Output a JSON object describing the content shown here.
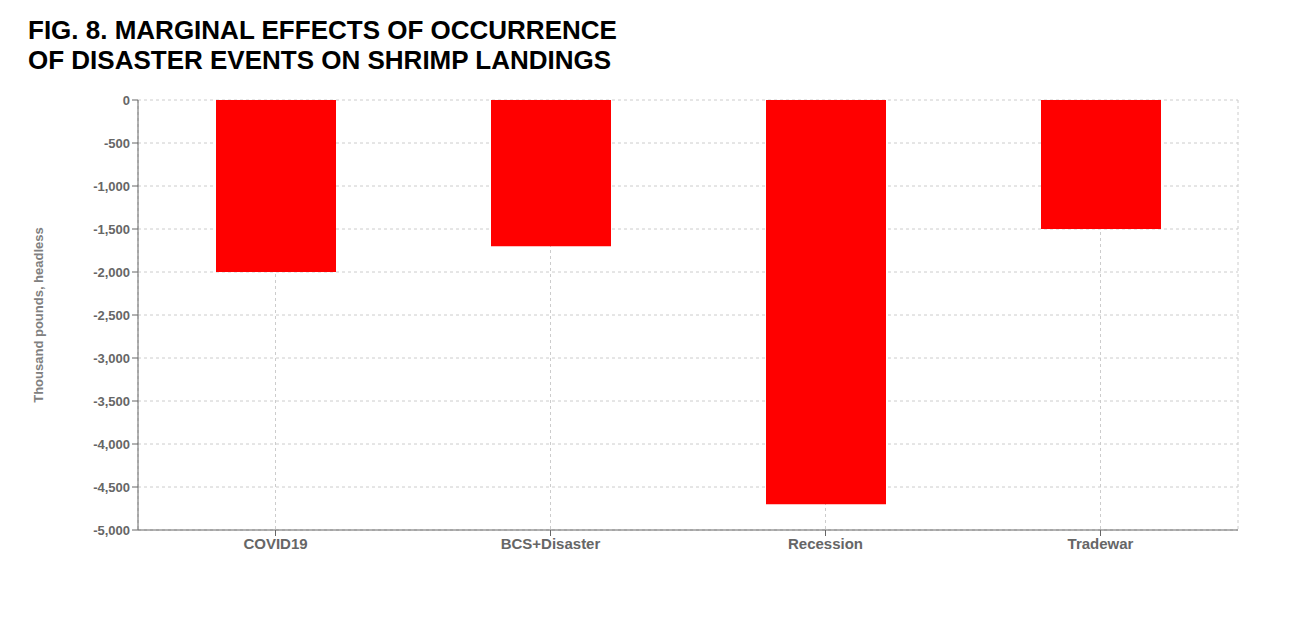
{
  "chart_data": {
    "type": "bar",
    "title": "FIG. 8. MARGINAL EFFECTS OF OCCURRENCE\nOF DISASTER EVENTS ON SHRIMP LANDINGS",
    "ylabel": "Thousand pounds, headless",
    "categories": [
      "COVID19",
      "BCS+Disaster",
      "Recession",
      "Tradewar"
    ],
    "values": [
      -2000,
      -1700,
      -4700,
      -1500
    ],
    "color": "#FF0000",
    "ylim": [
      -5000,
      0
    ],
    "yticks": [
      0,
      -500,
      {
        "value": -1000,
        "label": "-1,000"
      },
      {
        "value": -1500,
        "label": "-1,500"
      },
      {
        "value": -2000,
        "label": "-2,000"
      },
      {
        "value": -2500,
        "label": "-2,500"
      },
      {
        "value": -3000,
        "label": "-3,000"
      },
      {
        "value": -3500,
        "label": "-3,500"
      },
      {
        "value": -4000,
        "label": "-4,000"
      },
      {
        "value": -4500,
        "label": "-4,500"
      },
      {
        "value": -5000,
        "label": "-5,000"
      }
    ],
    "grid": true
  }
}
